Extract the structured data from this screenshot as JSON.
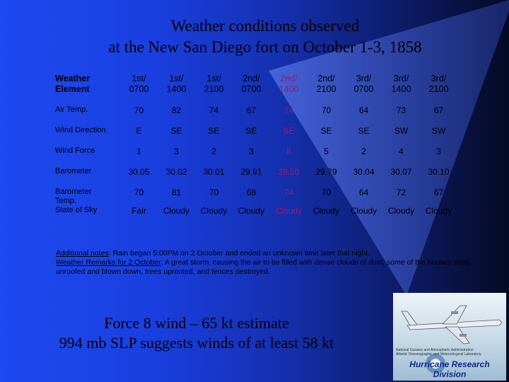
{
  "title": {
    "line1": "Weather conditions observed",
    "line2": "at the New San Diego fort on October 1-3, 1858"
  },
  "table": {
    "header_label": [
      "Weather",
      "Element"
    ],
    "columns": [
      [
        "1st/",
        "0700"
      ],
      [
        "1st/",
        "1400"
      ],
      [
        "1st/",
        "2100"
      ],
      [
        "2nd/",
        "0700"
      ],
      [
        "2nd/",
        "1400"
      ],
      [
        "2nd/",
        "2100"
      ],
      [
        "3rd/",
        "0700"
      ],
      [
        "3rd/",
        "1400"
      ],
      [
        "3rd/",
        "2100"
      ]
    ],
    "highlight_column_index": 4,
    "highlight_color": "#9a1b6a",
    "rows": [
      {
        "label": [
          "Air Temp."
        ],
        "values": [
          "70",
          "82",
          "74",
          "67",
          "74",
          "70",
          "64",
          "73",
          "67"
        ]
      },
      {
        "label": [
          "Wind Direction"
        ],
        "values": [
          "E",
          "SE",
          "SE",
          "SE",
          "SE",
          "SE",
          "SE",
          "SW",
          "SW"
        ]
      },
      {
        "label": [
          "Wind Force"
        ],
        "values": [
          "1",
          "3",
          "2",
          "3",
          "8",
          "5",
          "2",
          "4",
          "3"
        ]
      },
      {
        "label": [
          "Barometer"
        ],
        "values": [
          "30.05",
          "30.02",
          "30.01",
          "29.91",
          "29.50",
          "29.79",
          "30.04",
          "30.07",
          "30.10"
        ]
      },
      {
        "label": [
          "Barometer",
          "Temp."
        ],
        "values": [
          "70",
          "81",
          "70",
          "68",
          "74",
          "70",
          "64",
          "72",
          "67"
        ]
      },
      {
        "label": [
          "State of Sky"
        ],
        "values": [
          "Fair",
          "Cloudy",
          "Cloudy",
          "Cloudy",
          "Cloudy",
          "Cloudy",
          "Cloudy",
          "Cloudy",
          "Cloudy"
        ]
      }
    ]
  },
  "notes": {
    "additional_label": "Additional notes",
    "additional_text": ": Rain began 5:00PM on 2 October and ended an unknown time later that night.",
    "remarks_label": "Weather Remarks for 2 October",
    "remarks_text": ": A great storm, causing the air to be filled with dense clouds of dust, some of the houses were unroofed and blown down, trees uprooted, and fences destroyed."
  },
  "force": {
    "line1": "Force 8 wind – 65 kt estimate",
    "line2": "994 mb SLP suggests winds of at least 58 kt"
  },
  "logo": {
    "small_lines": [
      "National Oceanic and Atmospheric Administration",
      "Atlantic Oceanographic and Meteorological Laboratory"
    ],
    "division": "Hurricane Research Division"
  },
  "colors": {
    "background_left": "#1e49f0",
    "background_right": "#050a24"
  }
}
